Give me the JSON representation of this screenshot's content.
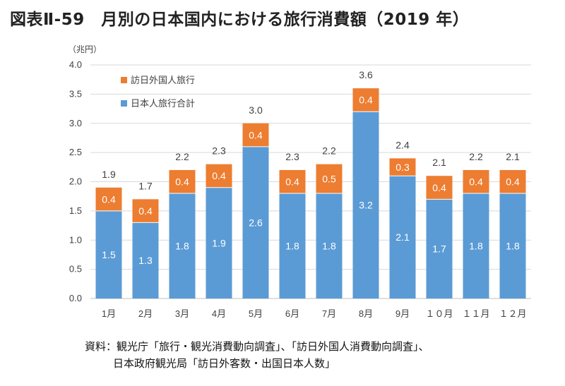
{
  "page": {
    "title": "図表Ⅱ-59　月別の日本国内における旅行消費額（2019 年）",
    "source_line1": "資料：観光庁「旅行・観光消費動向調査」、「訪日外国人消費動向調査」、",
    "source_line2": "日本政府観光局「訪日外客数・出国日本人数」"
  },
  "colors": {
    "domestic": "#5b9bd5",
    "inbound": "#ed7d31",
    "grid": "#d9d9d9",
    "axis": "#595959",
    "label_dark": "#404040",
    "label_light": "#ffffff"
  },
  "chart_data": {
    "type": "bar",
    "stacked": true,
    "unit_label": "（兆円）",
    "categories": [
      "1月",
      "2月",
      "3月",
      "4月",
      "5月",
      "6月",
      "7月",
      "8月",
      "9月",
      "１０月",
      "１１月",
      "１２月"
    ],
    "series": [
      {
        "name": "日本人旅行合計",
        "values": [
          1.5,
          1.3,
          1.8,
          1.9,
          2.6,
          1.8,
          1.8,
          3.2,
          2.1,
          1.7,
          1.8,
          1.8
        ]
      },
      {
        "name": "訪日外国人旅行",
        "values": [
          0.4,
          0.4,
          0.4,
          0.4,
          0.4,
          0.4,
          0.5,
          0.4,
          0.3,
          0.4,
          0.4,
          0.4
        ]
      }
    ],
    "totals": [
      1.9,
      1.7,
      2.2,
      2.3,
      3.0,
      2.3,
      2.2,
      3.6,
      2.4,
      2.1,
      2.2,
      2.1
    ],
    "ylim": [
      0,
      4.0
    ],
    "yticks": [
      "0.0",
      "0.5",
      "1.0",
      "1.5",
      "2.0",
      "2.5",
      "3.0",
      "3.5",
      "4.0"
    ],
    "legend": [
      {
        "name": "訪日外国人旅行",
        "color": "#ed7d31"
      },
      {
        "name": "日本人旅行合計",
        "color": "#5b9bd5"
      }
    ],
    "legend_position": "top-left"
  }
}
